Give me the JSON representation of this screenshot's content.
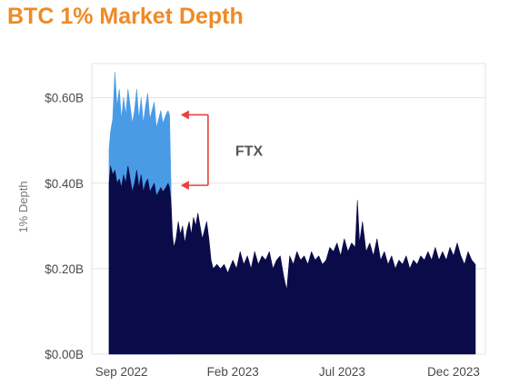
{
  "chart_data": {
    "type": "area",
    "title": "BTC 1% Market Depth",
    "xlabel": "",
    "ylabel": "1% Depth",
    "ylim": [
      0,
      0.68
    ],
    "yticks": [
      0,
      0.2,
      0.4,
      0.6
    ],
    "ytick_labels": [
      "$0.00B",
      "$0.20B",
      "$0.40B",
      "$0.60B"
    ],
    "x_start": "2022-08-15",
    "x_end": "2023-12-31",
    "xticks": [
      {
        "date": "2022-09-01",
        "label": "Sep 2022"
      },
      {
        "date": "2023-02-01",
        "label": "Feb 2023"
      },
      {
        "date": "2023-07-01",
        "label": "Jul 2023"
      },
      {
        "date": "2023-12-01",
        "label": "Dec 2023"
      }
    ],
    "grid": true,
    "series": [
      {
        "name": "",
        "color": "#0b0b4a",
        "points": [
          [
            "2022-08-15",
            0.4
          ],
          [
            "2022-08-17",
            0.44
          ],
          [
            "2022-08-20",
            0.42
          ],
          [
            "2022-08-23",
            0.43
          ],
          [
            "2022-08-26",
            0.4
          ],
          [
            "2022-08-29",
            0.41
          ],
          [
            "2022-09-01",
            0.39
          ],
          [
            "2022-09-04",
            0.42
          ],
          [
            "2022-09-07",
            0.4
          ],
          [
            "2022-09-10",
            0.44
          ],
          [
            "2022-09-13",
            0.41
          ],
          [
            "2022-09-16",
            0.38
          ],
          [
            "2022-09-19",
            0.4
          ],
          [
            "2022-09-22",
            0.43
          ],
          [
            "2022-09-25",
            0.39
          ],
          [
            "2022-09-28",
            0.42
          ],
          [
            "2022-10-01",
            0.38
          ],
          [
            "2022-10-04",
            0.4
          ],
          [
            "2022-10-07",
            0.41
          ],
          [
            "2022-10-10",
            0.38
          ],
          [
            "2022-10-13",
            0.39
          ],
          [
            "2022-10-16",
            0.4
          ],
          [
            "2022-10-19",
            0.37
          ],
          [
            "2022-10-22",
            0.38
          ],
          [
            "2022-10-25",
            0.39
          ],
          [
            "2022-10-28",
            0.38
          ],
          [
            "2022-11-01",
            0.39
          ],
          [
            "2022-11-04",
            0.4
          ],
          [
            "2022-11-06",
            0.39
          ],
          [
            "2022-11-08",
            0.36
          ],
          [
            "2022-11-10",
            0.28
          ],
          [
            "2022-11-12",
            0.25
          ],
          [
            "2022-11-15",
            0.27
          ],
          [
            "2022-11-18",
            0.31
          ],
          [
            "2022-11-21",
            0.28
          ],
          [
            "2022-11-24",
            0.3
          ],
          [
            "2022-11-27",
            0.26
          ],
          [
            "2022-11-30",
            0.29
          ],
          [
            "2022-12-03",
            0.31
          ],
          [
            "2022-12-06",
            0.28
          ],
          [
            "2022-12-09",
            0.32
          ],
          [
            "2022-12-12",
            0.3
          ],
          [
            "2022-12-15",
            0.33
          ],
          [
            "2022-12-18",
            0.3
          ],
          [
            "2022-12-21",
            0.27
          ],
          [
            "2022-12-24",
            0.29
          ],
          [
            "2022-12-27",
            0.31
          ],
          [
            "2022-12-30",
            0.27
          ],
          [
            "2023-01-02",
            0.22
          ],
          [
            "2023-01-05",
            0.2
          ],
          [
            "2023-01-10",
            0.21
          ],
          [
            "2023-01-15",
            0.2
          ],
          [
            "2023-01-20",
            0.21
          ],
          [
            "2023-01-25",
            0.19
          ],
          [
            "2023-02-01",
            0.22
          ],
          [
            "2023-02-06",
            0.2
          ],
          [
            "2023-02-11",
            0.24
          ],
          [
            "2023-02-16",
            0.21
          ],
          [
            "2023-02-21",
            0.23
          ],
          [
            "2023-02-26",
            0.2
          ],
          [
            "2023-03-03",
            0.24
          ],
          [
            "2023-03-08",
            0.21
          ],
          [
            "2023-03-13",
            0.23
          ],
          [
            "2023-03-18",
            0.22
          ],
          [
            "2023-03-23",
            0.24
          ],
          [
            "2023-03-28",
            0.2
          ],
          [
            "2023-04-02",
            0.22
          ],
          [
            "2023-04-07",
            0.23
          ],
          [
            "2023-04-12",
            0.18
          ],
          [
            "2023-04-16",
            0.15
          ],
          [
            "2023-04-20",
            0.23
          ],
          [
            "2023-04-25",
            0.21
          ],
          [
            "2023-04-30",
            0.24
          ],
          [
            "2023-05-05",
            0.22
          ],
          [
            "2023-05-10",
            0.23
          ],
          [
            "2023-05-15",
            0.21
          ],
          [
            "2023-05-20",
            0.24
          ],
          [
            "2023-05-25",
            0.22
          ],
          [
            "2023-05-30",
            0.23
          ],
          [
            "2023-06-04",
            0.21
          ],
          [
            "2023-06-09",
            0.22
          ],
          [
            "2023-06-14",
            0.25
          ],
          [
            "2023-06-19",
            0.24
          ],
          [
            "2023-06-24",
            0.26
          ],
          [
            "2023-06-29",
            0.23
          ],
          [
            "2023-07-04",
            0.27
          ],
          [
            "2023-07-09",
            0.24
          ],
          [
            "2023-07-14",
            0.26
          ],
          [
            "2023-07-19",
            0.25
          ],
          [
            "2023-07-22",
            0.36
          ],
          [
            "2023-07-25",
            0.26
          ],
          [
            "2023-07-29",
            0.31
          ],
          [
            "2023-08-03",
            0.24
          ],
          [
            "2023-08-08",
            0.26
          ],
          [
            "2023-08-13",
            0.23
          ],
          [
            "2023-08-18",
            0.27
          ],
          [
            "2023-08-23",
            0.22
          ],
          [
            "2023-08-28",
            0.24
          ],
          [
            "2023-09-02",
            0.21
          ],
          [
            "2023-09-07",
            0.23
          ],
          [
            "2023-09-12",
            0.2
          ],
          [
            "2023-09-17",
            0.22
          ],
          [
            "2023-09-22",
            0.21
          ],
          [
            "2023-09-27",
            0.23
          ],
          [
            "2023-10-02",
            0.2
          ],
          [
            "2023-10-07",
            0.22
          ],
          [
            "2023-10-12",
            0.21
          ],
          [
            "2023-10-17",
            0.23
          ],
          [
            "2023-10-22",
            0.22
          ],
          [
            "2023-10-27",
            0.24
          ],
          [
            "2023-11-01",
            0.22
          ],
          [
            "2023-11-06",
            0.25
          ],
          [
            "2023-11-11",
            0.22
          ],
          [
            "2023-11-16",
            0.24
          ],
          [
            "2023-11-21",
            0.22
          ],
          [
            "2023-11-26",
            0.25
          ],
          [
            "2023-12-01",
            0.23
          ],
          [
            "2023-12-06",
            0.26
          ],
          [
            "2023-12-11",
            0.23
          ],
          [
            "2023-12-16",
            0.21
          ],
          [
            "2023-12-21",
            0.24
          ],
          [
            "2023-12-26",
            0.22
          ],
          [
            "2023-12-31",
            0.21
          ]
        ]
      },
      {
        "name": "",
        "color": "#4a9be6",
        "points": [
          [
            "2022-08-15",
            0.48
          ],
          [
            "2022-08-17",
            0.52
          ],
          [
            "2022-08-20",
            0.55
          ],
          [
            "2022-08-23",
            0.66
          ],
          [
            "2022-08-26",
            0.58
          ],
          [
            "2022-08-29",
            0.62
          ],
          [
            "2022-09-01",
            0.55
          ],
          [
            "2022-09-04",
            0.6
          ],
          [
            "2022-09-07",
            0.56
          ],
          [
            "2022-09-10",
            0.62
          ],
          [
            "2022-09-13",
            0.58
          ],
          [
            "2022-09-16",
            0.54
          ],
          [
            "2022-09-19",
            0.57
          ],
          [
            "2022-09-22",
            0.62
          ],
          [
            "2022-09-25",
            0.55
          ],
          [
            "2022-09-28",
            0.6
          ],
          [
            "2022-10-01",
            0.54
          ],
          [
            "2022-10-04",
            0.58
          ],
          [
            "2022-10-07",
            0.61
          ],
          [
            "2022-10-10",
            0.55
          ],
          [
            "2022-10-13",
            0.57
          ],
          [
            "2022-10-16",
            0.59
          ],
          [
            "2022-10-19",
            0.53
          ],
          [
            "2022-10-22",
            0.55
          ],
          [
            "2022-10-25",
            0.57
          ],
          [
            "2022-10-28",
            0.54
          ],
          [
            "2022-11-01",
            0.56
          ],
          [
            "2022-11-04",
            0.57
          ],
          [
            "2022-11-06",
            0.56
          ],
          [
            "2022-11-08",
            0.4
          ]
        ]
      }
    ],
    "annotations": [
      {
        "text": "FTX",
        "kind": "bracket-arrows",
        "date": "2022-11-14",
        "from": 0.56,
        "to": 0.395,
        "color": "#e8423b"
      }
    ]
  }
}
